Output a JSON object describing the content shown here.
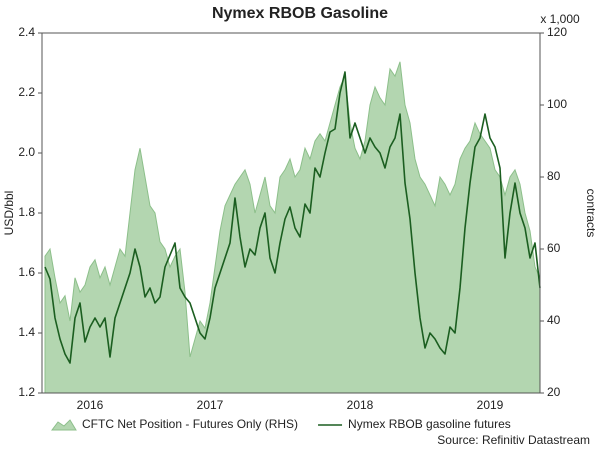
{
  "chart_data": {
    "type": "line",
    "title": "Nymex RBOB Gasoline",
    "y_label": "USD/bbl",
    "y2_label": "contracts",
    "y2_unit_note": "x 1,000",
    "source": "Source: Refinitiv Datastream",
    "categories": [
      null,
      null,
      null,
      null,
      null,
      null,
      null,
      null,
      null,
      "2016",
      null,
      null,
      null,
      null,
      null,
      null,
      null,
      null,
      null,
      null,
      null,
      null,
      null,
      null,
      null,
      null,
      null,
      null,
      null,
      null,
      null,
      null,
      null,
      "2017",
      null,
      null,
      null,
      null,
      null,
      null,
      null,
      null,
      null,
      null,
      null,
      null,
      null,
      null,
      null,
      null,
      null,
      null,
      null,
      null,
      null,
      null,
      null,
      null,
      null,
      null,
      null,
      null,
      null,
      "2018",
      null,
      null,
      null,
      null,
      null,
      null,
      null,
      null,
      null,
      null,
      null,
      null,
      null,
      null,
      null,
      null,
      null,
      null,
      null,
      null,
      null,
      null,
      null,
      null,
      null,
      "2019",
      null,
      null,
      null,
      null,
      null,
      null,
      null,
      null,
      null,
      null
    ],
    "series": [
      {
        "name": "CFTC Net Position - Futures Only (RHS)",
        "type": "area",
        "axis": "y2",
        "color": "#b3d6b0",
        "values": [
          58,
          60,
          52,
          45,
          47,
          40,
          52,
          48,
          50,
          55,
          57,
          52,
          55,
          50,
          55,
          60,
          58,
          70,
          82,
          88,
          80,
          72,
          70,
          62,
          60,
          55,
          58,
          60,
          48,
          30,
          35,
          40,
          38,
          45,
          55,
          65,
          72,
          75,
          78,
          80,
          82,
          78,
          70,
          75,
          80,
          72,
          70,
          80,
          82,
          85,
          80,
          82,
          88,
          85,
          90,
          92,
          90,
          95,
          100,
          105,
          108,
          95,
          88,
          85,
          90,
          100,
          105,
          102,
          100,
          110,
          108,
          112,
          100,
          95,
          85,
          80,
          78,
          75,
          72,
          80,
          78,
          75,
          78,
          85,
          88,
          90,
          95,
          92,
          90,
          88,
          82,
          80,
          75,
          80,
          82,
          78,
          70,
          65,
          55,
          52
        ]
      },
      {
        "name": "Nymex RBOB gasoline futures",
        "type": "line",
        "color": "#1b5e20",
        "values": [
          1.62,
          1.58,
          1.45,
          1.38,
          1.33,
          1.3,
          1.45,
          1.5,
          1.37,
          1.42,
          1.45,
          1.42,
          1.45,
          1.32,
          1.45,
          1.5,
          1.55,
          1.6,
          1.68,
          1.62,
          1.52,
          1.55,
          1.5,
          1.52,
          1.62,
          1.66,
          1.7,
          1.55,
          1.52,
          1.5,
          1.45,
          1.4,
          1.38,
          1.45,
          1.55,
          1.6,
          1.65,
          1.7,
          1.85,
          1.72,
          1.62,
          1.68,
          1.66,
          1.75,
          1.8,
          1.65,
          1.6,
          1.7,
          1.78,
          1.82,
          1.75,
          1.72,
          1.83,
          1.8,
          1.95,
          1.92,
          2.0,
          2.07,
          2.08,
          2.2,
          2.27,
          2.05,
          2.1,
          2.05,
          2.0,
          2.05,
          2.02,
          2.0,
          1.95,
          2.02,
          2.05,
          2.13,
          1.9,
          1.78,
          1.6,
          1.45,
          1.35,
          1.4,
          1.38,
          1.35,
          1.33,
          1.42,
          1.4,
          1.55,
          1.75,
          1.9,
          2.02,
          2.05,
          2.13,
          2.05,
          2.02,
          1.95,
          1.65,
          1.8,
          1.9,
          1.8,
          1.75,
          1.65,
          1.7,
          1.55
        ]
      }
    ],
    "ylim": [
      1.2,
      2.4
    ],
    "yticks": [
      1.2,
      1.4,
      1.6,
      1.8,
      {
        "value": 2,
        "label": "2.0"
      },
      2.2,
      2.4
    ],
    "y2lim": [
      20,
      120
    ],
    "y2ticks": [
      20,
      40,
      60,
      80,
      100,
      120
    ],
    "legend": "bottom"
  }
}
